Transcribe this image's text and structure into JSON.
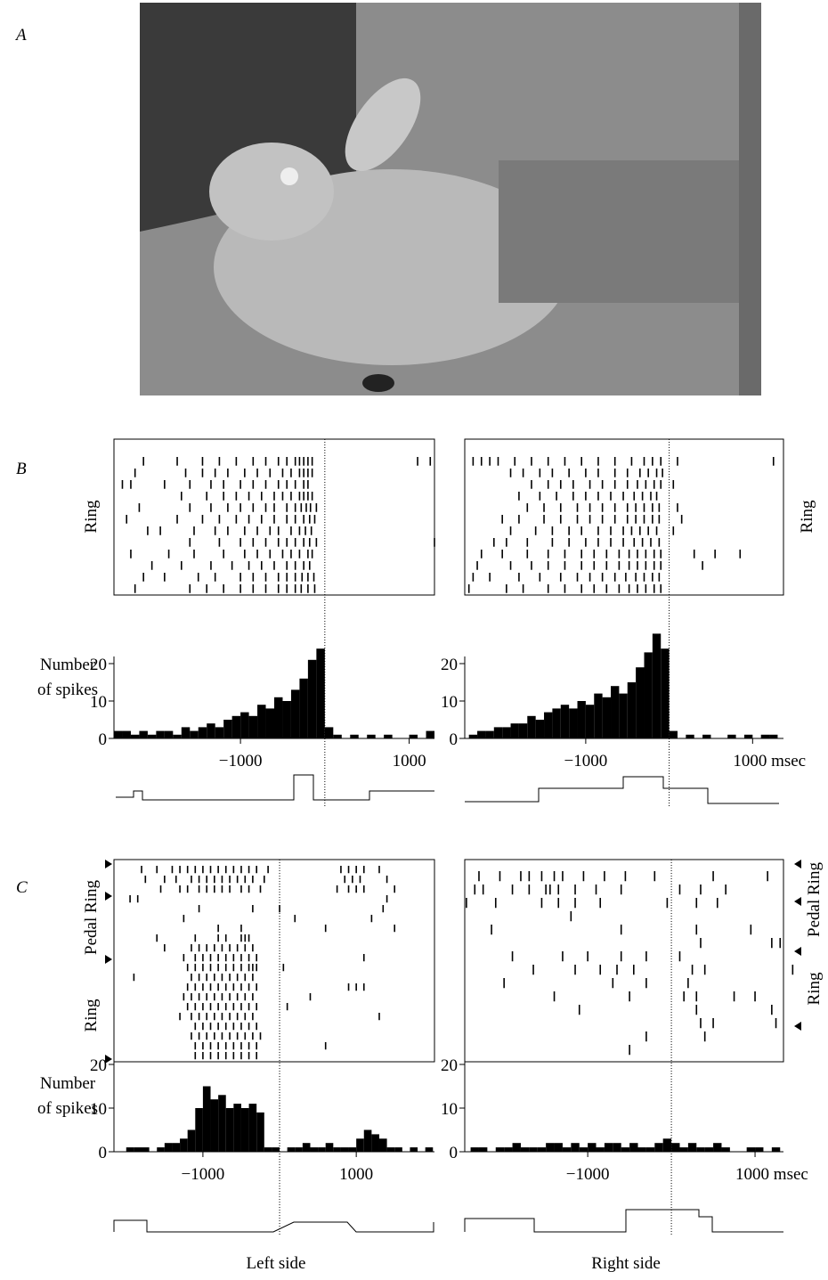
{
  "figure": {
    "panels": [
      "A",
      "B",
      "C"
    ],
    "x_labels": [
      "Left side",
      "Right side"
    ]
  },
  "chart_data": [
    {
      "type": "histogram",
      "ylabel": [
        "Number",
        "of spikes"
      ],
      "raster_labels": [
        "Ring"
      ],
      "xlim": [
        -2500,
        1300
      ],
      "xticks": [
        {
          "value": -1000,
          "label": "−1000"
        },
        1000
      ],
      "ylim": [
        0,
        33
      ],
      "yticks": [
        0,
        10,
        20
      ],
      "bins": [
        -2500,
        -2400,
        -2300,
        -2200,
        -2100,
        -2000,
        -1900,
        -1800,
        -1700,
        -1600,
        -1500,
        -1400,
        -1300,
        -1200,
        -1100,
        -1000,
        -900,
        -800,
        -700,
        -600,
        -500,
        -400,
        -300,
        -200,
        -100,
        0,
        100,
        200,
        300,
        400,
        500,
        600,
        700,
        800,
        900,
        1000,
        1100,
        1200,
        1300
      ],
      "values": [
        2,
        2,
        1,
        2,
        1,
        2,
        2,
        1,
        3,
        2,
        3,
        4,
        3,
        5,
        6,
        7,
        6,
        9,
        8,
        11,
        10,
        13,
        16,
        21,
        24,
        3,
        1,
        0,
        1,
        0,
        1,
        0,
        1,
        0,
        0,
        1,
        0,
        2
      ],
      "raster": [
        [
          -2150,
          -1750,
          -1450,
          -1250,
          -1050,
          -850,
          -700,
          -550,
          -450,
          -350,
          -300,
          -250,
          -200,
          -150,
          1100,
          1250
        ],
        [
          -2250,
          -1650,
          -1450,
          -1300,
          -1150,
          -950,
          -800,
          -650,
          -500,
          -400,
          -300,
          -250,
          -200,
          -150
        ],
        [
          -2400,
          -2300,
          -1900,
          -1600,
          -1350,
          -1200,
          -1000,
          -850,
          -700,
          -550,
          -450,
          -350,
          -250,
          -200
        ],
        [
          -1700,
          -1400,
          -1200,
          -1050,
          -900,
          -750,
          -600,
          -500,
          -400,
          -300,
          -250,
          -200,
          -150
        ],
        [
          -2200,
          -1600,
          -1350,
          -1150,
          -1000,
          -850,
          -700,
          -600,
          -450,
          -350,
          -280,
          -220,
          -170,
          -100
        ],
        [
          -2350,
          -1750,
          -1450,
          -1250,
          -1050,
          -900,
          -750,
          -600,
          -450,
          -350,
          -250,
          -180,
          -120
        ],
        [
          -2100,
          -1950,
          -1550,
          -1300,
          -1150,
          -950,
          -800,
          -650,
          -550,
          -400,
          -300,
          -230,
          -160
        ],
        [
          -1600,
          -1250,
          -1000,
          -850,
          -700,
          -550,
          -450,
          -350,
          -250,
          -180,
          -100,
          1300
        ],
        [
          -2300,
          -1850,
          -1550,
          -1200,
          -950,
          -800,
          -650,
          -500,
          -400,
          -300,
          -200,
          -150
        ],
        [
          -2050,
          -1700,
          -1350,
          -1100,
          -900,
          -750,
          -600,
          -450,
          -350,
          -250,
          -180
        ],
        [
          -2150,
          -1900,
          -1500,
          -1300,
          -1000,
          -850,
          -700,
          -550,
          -450,
          -350,
          -270,
          -200,
          -130
        ],
        [
          -2250,
          -1600,
          -1400,
          -1200,
          -1000,
          -850,
          -700,
          -550,
          -450,
          -350,
          -280,
          -200,
          -120
        ]
      ]
    },
    {
      "type": "histogram",
      "raster_labels": [
        "Ring"
      ],
      "xlim": [
        -2450,
        1370
      ],
      "xticks": [
        {
          "value": -1000,
          "label": "−1000"
        },
        {
          "value": 1000,
          "label": "1000 msec"
        }
      ],
      "ylim": [
        0,
        33
      ],
      "yticks": [
        0,
        10,
        20
      ],
      "bins": [
        -2400,
        -2300,
        -2200,
        -2100,
        -2000,
        -1900,
        -1800,
        -1700,
        -1600,
        -1500,
        -1400,
        -1300,
        -1200,
        -1100,
        -1000,
        -900,
        -800,
        -700,
        -600,
        -500,
        -400,
        -300,
        -200,
        -100,
        0,
        100,
        200,
        300,
        400,
        500,
        600,
        700,
        800,
        900,
        1000,
        1100,
        1200,
        1300
      ],
      "values": [
        1,
        2,
        2,
        3,
        3,
        4,
        4,
        6,
        5,
        7,
        8,
        9,
        8,
        10,
        9,
        12,
        11,
        14,
        12,
        15,
        19,
        23,
        28,
        24,
        2,
        0,
        1,
        0,
        1,
        0,
        0,
        1,
        0,
        1,
        0,
        1,
        1
      ],
      "raster": [
        [
          -2350,
          -2250,
          -2150,
          -2050,
          -1850,
          -1650,
          -1450,
          -1250,
          -1050,
          -850,
          -650,
          -450,
          -300,
          -200,
          -100,
          100,
          1250
        ],
        [
          -1900,
          -1750,
          -1550,
          -1400,
          -1200,
          -1000,
          -850,
          -650,
          -500,
          -350,
          -250,
          -150,
          -80
        ],
        [
          -1650,
          -1450,
          -1300,
          -1150,
          -950,
          -800,
          -650,
          -500,
          -380,
          -280,
          -180,
          -100,
          50
        ],
        [
          -1800,
          -1550,
          -1350,
          -1150,
          -1000,
          -850,
          -700,
          -550,
          -420,
          -320,
          -220,
          -150
        ],
        [
          -1700,
          -1500,
          -1300,
          -1100,
          -950,
          -800,
          -650,
          -500,
          -400,
          -300,
          -200,
          -120,
          100
        ],
        [
          -2000,
          -1800,
          -1500,
          -1300,
          -1100,
          -950,
          -800,
          -650,
          -500,
          -400,
          -300,
          -200,
          -120,
          150
        ],
        [
          -1900,
          -1600,
          -1400,
          -1200,
          -1050,
          -850,
          -700,
          -550,
          -450,
          -350,
          -250,
          -150,
          50
        ],
        [
          -2100,
          -1950,
          -1700,
          -1400,
          -1200,
          -1000,
          -850,
          -700,
          -550,
          -420,
          -320,
          -220,
          -120
        ],
        [
          -2250,
          -2000,
          -1700,
          -1450,
          -1250,
          -1050,
          -900,
          -750,
          -600,
          -480,
          -380,
          -280,
          -180,
          -100,
          300,
          550,
          850
        ],
        [
          -2300,
          -1900,
          -1650,
          -1450,
          -1250,
          -1050,
          -900,
          -750,
          -600,
          -480,
          -380,
          -280,
          -180,
          -100,
          400
        ],
        [
          -2350,
          -2150,
          -1800,
          -1550,
          -1300,
          -1100,
          -950,
          -800,
          -650,
          -520,
          -400,
          -300,
          -200,
          -120
        ],
        [
          -2400,
          -1950,
          -1750,
          -1450,
          -1250,
          -1050,
          -900,
          -750,
          -600,
          -480,
          -380,
          -280,
          -180,
          -100
        ]
      ]
    },
    {
      "type": "histogram",
      "ylabel": [
        "Number",
        "of spikes"
      ],
      "raster_labels": [
        "Pedal  Ring",
        "Ring"
      ],
      "xlim": [
        -2160,
        2020
      ],
      "xticks": [
        {
          "value": -1000,
          "label": "−1000"
        },
        1000
      ],
      "ylim": [
        0,
        20
      ],
      "yticks": [
        0,
        10,
        20
      ],
      "bins": [
        -2100,
        -2000,
        -1900,
        -1800,
        -1700,
        -1600,
        -1500,
        -1400,
        -1300,
        -1200,
        -1100,
        -1000,
        -900,
        -800,
        -700,
        -600,
        -500,
        -400,
        -300,
        -200,
        -100,
        0,
        100,
        200,
        300,
        400,
        500,
        600,
        700,
        800,
        900,
        1000,
        1100,
        1200,
        1300,
        1400,
        1500,
        1600,
        1700,
        1800,
        1900,
        2000
      ],
      "values": [
        0,
        1,
        1,
        1,
        0,
        1,
        2,
        2,
        3,
        5,
        10,
        15,
        12,
        13,
        10,
        11,
        10,
        11,
        9,
        1,
        1,
        0,
        1,
        1,
        2,
        1,
        1,
        2,
        1,
        1,
        1,
        3,
        5,
        4,
        3,
        1,
        1,
        0,
        1,
        0,
        1
      ],
      "raster": [
        [
          -1800,
          -1600,
          -1400,
          -1300,
          -1200,
          -1100,
          -1000,
          -900,
          -800,
          -700,
          -600,
          -500,
          -400,
          -300,
          -150,
          800,
          900,
          1000,
          1100,
          1300
        ],
        [
          -1750,
          -1500,
          -1350,
          -1150,
          -1050,
          -950,
          -850,
          -750,
          -650,
          -550,
          -450,
          -350,
          -200,
          850,
          950,
          1050,
          1400
        ],
        [
          -1550,
          -1300,
          -1200,
          -1050,
          -950,
          -850,
          -750,
          -650,
          -500,
          -400,
          -250,
          750,
          900,
          1000,
          1100,
          1500
        ],
        [
          -1950,
          -1850,
          1400
        ],
        [
          -1050,
          -350,
          0,
          1350
        ],
        [
          -1250,
          200,
          1200
        ],
        [
          -800,
          -500,
          600,
          1500
        ],
        [
          -1600,
          -1100,
          -800,
          -700,
          -500,
          -450,
          -400
        ],
        [
          -1500,
          -1150,
          -1050,
          -950,
          -850,
          -750,
          -650,
          -550,
          -450,
          -350
        ],
        [
          -1250,
          -1100,
          -1000,
          -900,
          -800,
          -700,
          -600,
          -500,
          -400,
          -300,
          1100
        ],
        [
          -1200,
          -1100,
          -1000,
          -900,
          -800,
          -700,
          -600,
          -500,
          -400,
          -350,
          -300,
          50
        ],
        [
          -1900,
          -1150,
          -1050,
          -950,
          -850,
          -750,
          -650,
          -550,
          -450,
          -350
        ],
        [
          -1200,
          -1100,
          -1000,
          -900,
          -800,
          -700,
          -600,
          -500,
          -400,
          -300,
          900,
          1000,
          1100
        ],
        [
          -1250,
          -1150,
          -1050,
          -950,
          -850,
          -750,
          -650,
          -550,
          -450,
          -350,
          400
        ],
        [
          -1200,
          -1100,
          -1000,
          -900,
          -800,
          -700,
          -600,
          -500,
          -400,
          -300,
          100
        ],
        [
          -1300,
          -1150,
          -1050,
          -950,
          -850,
          -750,
          -650,
          -550,
          -450,
          -350,
          1300
        ],
        [
          -1100,
          -1000,
          -900,
          -800,
          -700,
          -600,
          -500,
          -400,
          -300
        ],
        [
          -1150,
          -1050,
          -950,
          -850,
          -750,
          -650,
          -550,
          -450,
          -350,
          -250
        ],
        [
          -1100,
          -1000,
          -900,
          -800,
          -700,
          -600,
          -500,
          -400,
          -300,
          600
        ],
        [
          -1100,
          -1000,
          -900,
          -800,
          -700,
          -600,
          -500,
          -400,
          -300
        ]
      ]
    },
    {
      "type": "histogram",
      "raster_labels": [
        "Pedal  Ring",
        "Ring"
      ],
      "xlim": [
        -2470,
        1340
      ],
      "xticks": [
        {
          "value": -1000,
          "label": "−1000"
        },
        {
          "value": 1000,
          "label": "1000 msec"
        }
      ],
      "ylim": [
        0,
        20
      ],
      "yticks": [
        0,
        10,
        20
      ],
      "bins": [
        -2400,
        -2300,
        -2200,
        -2100,
        -2000,
        -1900,
        -1800,
        -1700,
        -1600,
        -1500,
        -1400,
        -1300,
        -1200,
        -1100,
        -1000,
        -900,
        -800,
        -700,
        -600,
        -500,
        -400,
        -300,
        -200,
        -100,
        0,
        100,
        200,
        300,
        400,
        500,
        600,
        700,
        800,
        900,
        1000,
        1100,
        1200,
        1300
      ],
      "values": [
        1,
        1,
        0,
        1,
        1,
        2,
        1,
        1,
        1,
        2,
        2,
        1,
        2,
        1,
        2,
        1,
        2,
        2,
        1,
        2,
        1,
        1,
        2,
        3,
        2,
        1,
        2,
        1,
        1,
        2,
        1,
        0,
        0,
        1,
        1,
        0,
        1
      ],
      "raster": [
        [
          -2300,
          -2050,
          -1800,
          -1700,
          -1550,
          -1400,
          -1300,
          -1050,
          -800,
          -550,
          -200,
          500,
          1150
        ],
        [
          -2350,
          -2250,
          -1900,
          -1700,
          -1500,
          -1450,
          -1350,
          -1150,
          -900,
          -600,
          100,
          350,
          650
        ],
        [
          -2450,
          -2100,
          -1550,
          -1350,
          -1150,
          -850,
          -50,
          300,
          550
        ],
        [
          -1200
        ],
        [
          -2150,
          -600,
          300,
          950
        ],
        [
          350,
          1200,
          1300
        ],
        [
          -1900,
          -1300,
          -1000,
          -600,
          -300,
          100
        ],
        [
          -1650,
          -1150,
          -850,
          -650,
          -450,
          250,
          400,
          1450
        ],
        [
          -2000,
          -700,
          -300,
          200
        ],
        [
          -1400,
          -500,
          150,
          300,
          750,
          1000
        ],
        [
          -1100,
          300,
          1200
        ],
        [
          350,
          500,
          1250
        ],
        [
          -300,
          400
        ],
        [
          -500
        ]
      ]
    }
  ]
}
